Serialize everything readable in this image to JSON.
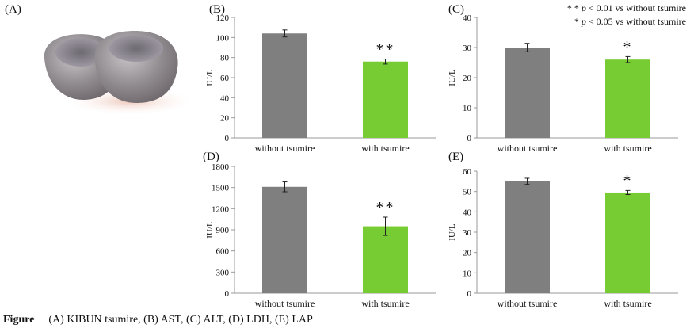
{
  "legend": {
    "line1_stars": "* *",
    "line1_p": "p",
    "line1_rest": " < 0.01 vs without tsumire",
    "line2_stars": "*",
    "line2_p": "p",
    "line2_rest": " < 0.05 vs without tsumire"
  },
  "caption": {
    "label": "Figure",
    "text": "(A) KIBUN tsumire, (B) AST, (C) ALT, (D) LDH, (E) LAP"
  },
  "panel_a": {
    "label": "(A)"
  },
  "colors": {
    "control": "#7f7f7f",
    "treated": "#77cc33",
    "axis": "#9a9a9a"
  },
  "chart_data": [
    {
      "id": "B",
      "label": "(B)",
      "type": "bar",
      "ylabel": "IU/L",
      "ylim": [
        0,
        120
      ],
      "yticks": [
        "0",
        "20",
        "40",
        "60",
        "80",
        "100",
        "120"
      ],
      "categories": [
        "without tsumire",
        "with tsumire"
      ],
      "values": [
        104,
        76
      ],
      "errors": [
        3.5,
        2.5
      ],
      "annotations": [
        "",
        "**"
      ]
    },
    {
      "id": "C",
      "label": "(C)",
      "type": "bar",
      "ylabel": "IU/L",
      "ylim": [
        0,
        40
      ],
      "yticks": [
        "0",
        "10",
        "20",
        "30",
        "40"
      ],
      "categories": [
        "without tsumire",
        "with tsumire"
      ],
      "values": [
        30,
        26
      ],
      "errors": [
        1.4,
        1.0
      ],
      "annotations": [
        "",
        "*"
      ]
    },
    {
      "id": "D",
      "label": "(D)",
      "type": "bar",
      "ylabel": "IU/L",
      "ylim": [
        0,
        1800
      ],
      "yticks": [
        "0",
        "300",
        "600",
        "900",
        "1200",
        "1500",
        "1800"
      ],
      "categories": [
        "without tsumire",
        "with tsumire"
      ],
      "values": [
        1510,
        950
      ],
      "errors": [
        70,
        130
      ],
      "annotations": [
        "",
        "**"
      ]
    },
    {
      "id": "E",
      "label": "(E)",
      "type": "bar",
      "ylabel": "IU/L",
      "ylim": [
        0,
        60
      ],
      "yticks": [
        "0",
        "10",
        "20",
        "30",
        "40",
        "50",
        "60"
      ],
      "categories": [
        "without tsumire",
        "with tsumire"
      ],
      "values": [
        55,
        49.5
      ],
      "errors": [
        1.5,
        1.0
      ],
      "annotations": [
        "",
        "*"
      ]
    }
  ]
}
